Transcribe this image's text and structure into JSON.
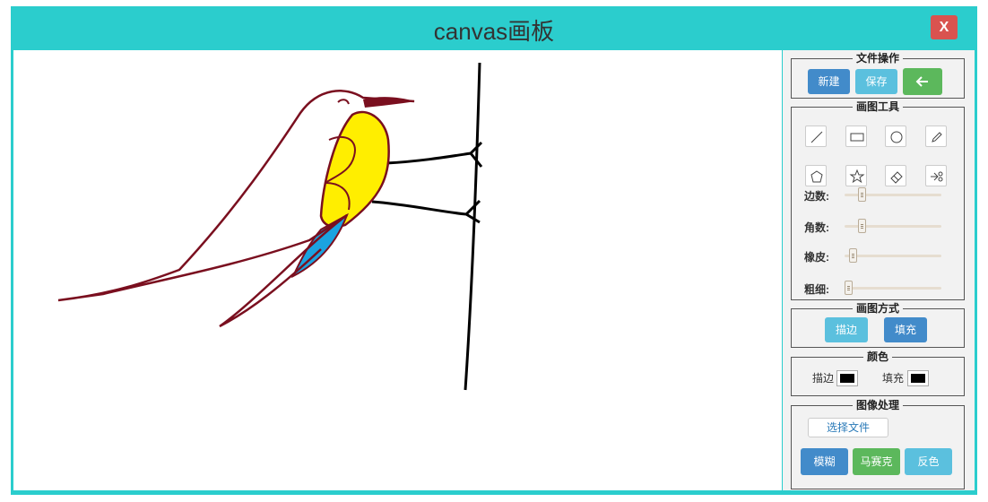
{
  "window": {
    "title": "canvas画板",
    "close_label": "X"
  },
  "file_ops": {
    "legend": "文件操作",
    "new_label": "新建",
    "save_label": "保存",
    "back_icon": "arrow-left-icon"
  },
  "tools": {
    "legend": "画图工具",
    "items": [
      "line-icon",
      "rectangle-icon",
      "circle-icon",
      "pencil-icon",
      "polygon-icon",
      "star-icon",
      "eraser-icon",
      "scissors-icon"
    ],
    "sliders": [
      {
        "label": "边数:",
        "value": 0.15
      },
      {
        "label": "角数:",
        "value": 0.15
      },
      {
        "label": "橡皮:",
        "value": 0.05
      },
      {
        "label": "粗细:",
        "value": 0.0
      }
    ]
  },
  "draw_mode": {
    "legend": "画图方式",
    "stroke_label": "描边",
    "fill_label": "填充"
  },
  "colors": {
    "legend": "颜色",
    "stroke_label": "描边",
    "fill_label": "填充",
    "stroke_color": "#000000",
    "fill_color": "#000000"
  },
  "image_processing": {
    "legend": "图像处理",
    "choose_file_label": "选择文件",
    "blur_label": "模糊",
    "mosaic_label": "马赛克",
    "invert_label": "反色"
  },
  "theme": {
    "accent": "#2bcdcd",
    "close": "#d9534f",
    "primary": "#428bca",
    "info": "#5bc0de",
    "success": "#5cb85c"
  },
  "drawing": {
    "bird_outline": "#7a0f1f",
    "body_fill": "#ffee00",
    "wing_fill": "#1ba3e0",
    "branch": "#000000"
  }
}
